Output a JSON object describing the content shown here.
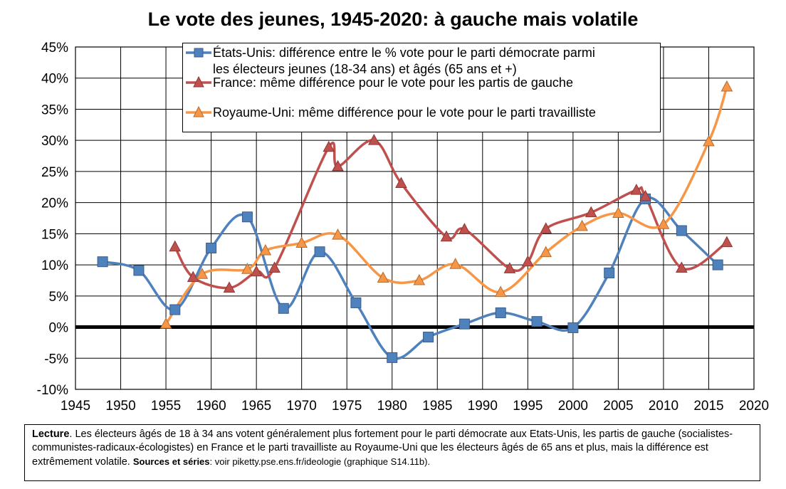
{
  "chart_data": {
    "type": "line",
    "title": "Le vote des jeunes, 1945-2020: à gauche mais volatile",
    "xlim": [
      1945,
      2020
    ],
    "ylim": [
      -10,
      45
    ],
    "x_ticks": [
      1945,
      1950,
      1955,
      1960,
      1965,
      1970,
      1975,
      1980,
      1985,
      1990,
      1995,
      2000,
      2005,
      2010,
      2015,
      2020
    ],
    "y_ticks": [
      -10,
      -5,
      0,
      5,
      10,
      15,
      20,
      25,
      30,
      35,
      40,
      45
    ],
    "y_tick_labels": [
      "-10%",
      "-5%",
      "0%",
      "5%",
      "10%",
      "15%",
      "20%",
      "25%",
      "30%",
      "35%",
      "40%",
      "45%"
    ],
    "grid": true,
    "legend_position": "top-center",
    "series": [
      {
        "name": "États-Unis: différence entre le % vote pour le parti démocrate parmi les électeurs jeunes (18-34 ans) et âgés (65 ans et +)",
        "name_lines": [
          "États-Unis: différence entre le % vote pour le parti démocrate parmi",
          "les électeurs jeunes (18-34 ans) et âgés (65 ans et +)"
        ],
        "color": "#4f81bd",
        "marker": "square",
        "points": [
          [
            1948,
            10.5
          ],
          [
            1952,
            9.1
          ],
          [
            1956,
            2.8
          ],
          [
            1960,
            12.7
          ],
          [
            1964,
            17.7
          ],
          [
            1968,
            3.0
          ],
          [
            1972,
            12.1
          ],
          [
            1976,
            3.9
          ],
          [
            1980,
            -4.9
          ],
          [
            1984,
            -1.6
          ],
          [
            1988,
            0.5
          ],
          [
            1992,
            2.3
          ],
          [
            1996,
            0.9
          ],
          [
            2000,
            -0.1
          ],
          [
            2004,
            8.7
          ],
          [
            2008,
            20.6
          ],
          [
            2012,
            15.5
          ],
          [
            2016,
            10.0
          ]
        ]
      },
      {
        "name": "France: même différence pour le vote pour les partis de gauche",
        "color": "#c0504d",
        "marker": "triangle",
        "points": [
          [
            1956,
            12.9
          ],
          [
            1958,
            8.0
          ],
          [
            1962,
            6.3
          ],
          [
            1965,
            8.9
          ],
          [
            1967,
            9.5
          ],
          [
            1973,
            28.9
          ],
          [
            1974,
            25.8
          ],
          [
            1978,
            30.0
          ],
          [
            1981,
            23.1
          ],
          [
            1986,
            14.5
          ],
          [
            1988,
            15.7
          ],
          [
            1993,
            9.4
          ],
          [
            1995,
            10.5
          ],
          [
            1997,
            15.8
          ],
          [
            2002,
            18.4
          ],
          [
            2007,
            22.0
          ],
          [
            2008,
            21.0
          ],
          [
            2012,
            9.5
          ],
          [
            2017,
            13.6
          ]
        ]
      },
      {
        "name": "Royaume-Uni: même différence pour le vote pour le parti travailliste",
        "color": "#f79646",
        "marker": "triangle",
        "points": [
          [
            1955,
            0.5
          ],
          [
            1959,
            8.5
          ],
          [
            1964,
            9.3
          ],
          [
            1966,
            12.3
          ],
          [
            1970,
            13.5
          ],
          [
            1974,
            14.8
          ],
          [
            1979,
            7.9
          ],
          [
            1983,
            7.5
          ],
          [
            1987,
            10.1
          ],
          [
            1992,
            5.6
          ],
          [
            1997,
            12.0
          ],
          [
            2001,
            16.2
          ],
          [
            2005,
            18.3
          ],
          [
            2010,
            16.5
          ],
          [
            2015,
            29.8
          ],
          [
            2017,
            38.6
          ]
        ]
      }
    ]
  },
  "caption": {
    "lecture_label": "Lecture",
    "lecture_text": ". Les électeurs âgés de 18 à 34 ans votent généralement plus fortement pour le parti démocrate aux Etats-Unis, les partis de gauche (socialistes-communistes-radicaux-écologistes) en France et le parti travailliste au Royaume-Uni que les électeurs âgés de 65 ans et plus, mais la différence est extrêmement volatile.",
    "sources_label": "Sources et séries",
    "sources_text": ": voir piketty.pse.ens.fr/ideologie (graphique S14.11b)."
  },
  "icons": {
    "square_marker": "square-marker-icon",
    "triangle_marker": "triangle-marker-icon"
  }
}
